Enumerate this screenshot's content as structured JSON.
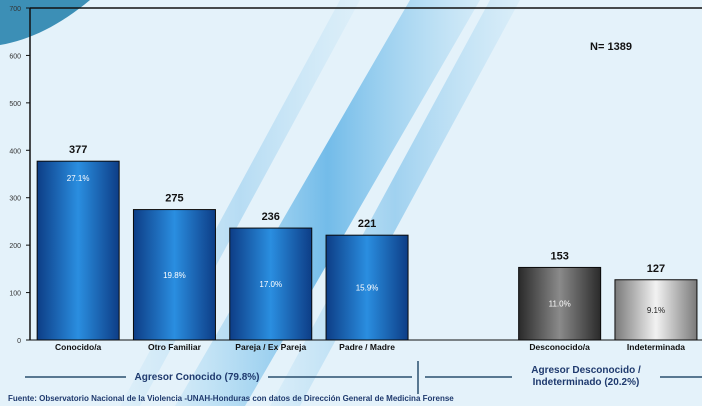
{
  "chart_data": {
    "type": "bar",
    "categories": [
      "Conocido/a",
      "Otro Familiar",
      "Pareja / Ex Pareja",
      "Padre / Madre",
      "",
      "Desconocido/a",
      "Indeterminada"
    ],
    "values": [
      377,
      275,
      236,
      221,
      null,
      153,
      127
    ],
    "value_labels": [
      "377",
      "275",
      "236",
      "221",
      "",
      "153",
      "127"
    ],
    "percent_labels": [
      "27.1%",
      "19.8%",
      "17.0%",
      "15.9%",
      "",
      "11.0%",
      "9.1%"
    ],
    "bar_groups": [
      "known",
      "known",
      "known",
      "known",
      "",
      "unknown",
      "unknown"
    ],
    "ylim": [
      0,
      700
    ],
    "yticks": [
      0,
      100,
      200,
      300,
      400,
      500,
      600,
      700
    ],
    "annotation": "N= 1389",
    "groups": [
      {
        "key": "known",
        "label": "Agresor Conocido (79.8%)"
      },
      {
        "key": "unknown",
        "label_lines": [
          "Agresor Desconocido /",
          "Indeterminado (20.2%)"
        ]
      }
    ],
    "source": "Fuente: Observatorio Nacional de la Violencia -UNAH-Honduras con datos de Dirección General de Medicina Forense",
    "grid": false,
    "legend": "none"
  },
  "colors": {
    "known": "#1e76c6",
    "unknown": "#525252",
    "indeterminate": "#c4c4c4",
    "axis": "#111111"
  }
}
